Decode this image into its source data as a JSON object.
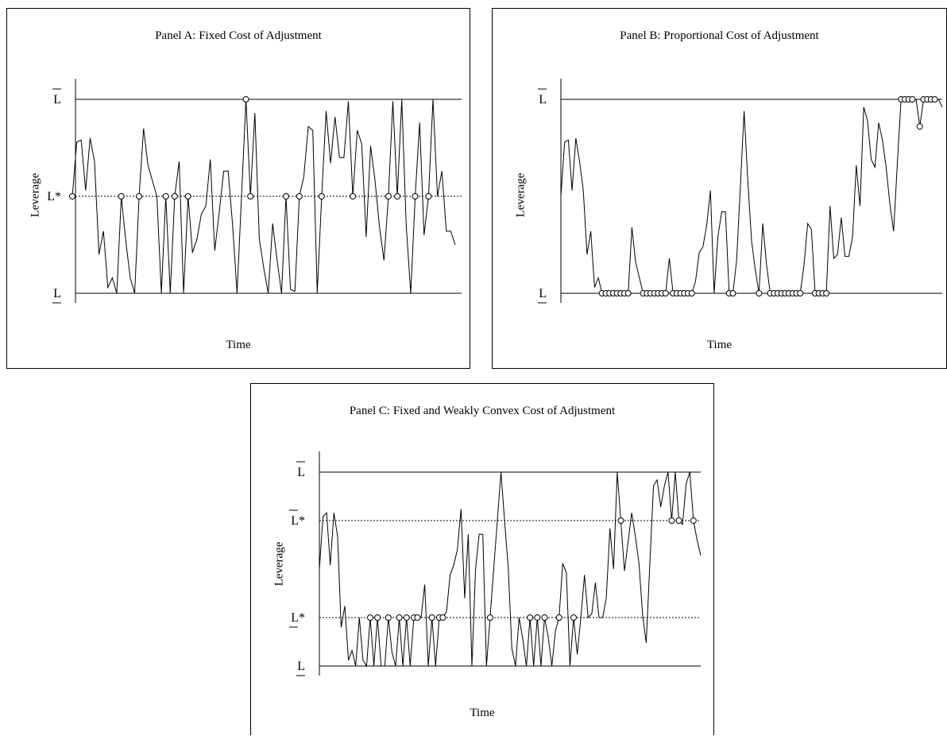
{
  "chart_data": [
    {
      "type": "line",
      "title": "Panel A: Fixed Cost of Adjustment",
      "xlabel": "Time",
      "ylabel": "Leverage",
      "ylim": [
        0,
        1
      ],
      "levels": [
        {
          "label": "L",
          "bar": "over",
          "value": 1.0,
          "style": "solid"
        },
        {
          "label": "L*",
          "bar": "none",
          "value": 0.5,
          "style": "dotted"
        },
        {
          "label": "L",
          "bar": "under",
          "value": 0.0,
          "style": "solid"
        }
      ],
      "series": [
        {
          "values": [
            0.5,
            0.78,
            0.79,
            0.53,
            0.8,
            0.68,
            0.2,
            0.32,
            0.03,
            0.08,
            0.0,
            0.5,
            0.27,
            0.08,
            0.0,
            0.5,
            0.85,
            0.66,
            0.58,
            0.5,
            0.0,
            0.5,
            0.0,
            0.5,
            0.68,
            0.0,
            0.5,
            0.21,
            0.28,
            0.41,
            0.45,
            0.69,
            0.22,
            0.42,
            0.63,
            0.63,
            0.35,
            0.0,
            0.5,
            1.0,
            0.5,
            0.93,
            0.28,
            0.13,
            0.0,
            0.36,
            0.17,
            0.0,
            0.5,
            0.02,
            0.01,
            0.5,
            0.6,
            0.86,
            0.84,
            0.0,
            0.5,
            0.94,
            0.67,
            0.91,
            0.7,
            0.7,
            0.99,
            0.5,
            0.84,
            0.77,
            0.29,
            0.76,
            0.58,
            0.34,
            0.17,
            0.5,
            0.99,
            0.5,
            1.0,
            0.35,
            0.0,
            0.5,
            0.88,
            0.3,
            0.5,
            1.0,
            0.5,
            0.63,
            0.32,
            0.32,
            0.25
          ]
        }
      ],
      "markers": [
        0,
        11,
        15,
        21,
        23,
        26,
        39,
        40,
        48,
        51,
        56,
        63,
        71,
        73,
        77,
        80
      ]
    },
    {
      "type": "line",
      "title": "Panel B: Proportional Cost of Adjustment",
      "xlabel": "Time",
      "ylabel": "Leverage",
      "ylim": [
        0,
        1
      ],
      "levels": [
        {
          "label": "L",
          "bar": "over",
          "value": 1.0,
          "style": "solid"
        },
        {
          "label": "L",
          "bar": "under",
          "value": 0.0,
          "style": "solid"
        }
      ],
      "series": [
        {
          "values": [
            0.5,
            0.78,
            0.79,
            0.53,
            0.8,
            0.68,
            0.53,
            0.2,
            0.32,
            0.03,
            0.08,
            0.0,
            0.0,
            0.0,
            0.0,
            0.0,
            0.0,
            0.0,
            0.0,
            0.34,
            0.16,
            0.08,
            0.0,
            0.0,
            0.0,
            0.0,
            0.0,
            0.0,
            0.0,
            0.18,
            0.0,
            0.0,
            0.0,
            0.0,
            0.0,
            0.0,
            0.06,
            0.21,
            0.24,
            0.35,
            0.53,
            0.0,
            0.29,
            0.42,
            0.42,
            0.0,
            0.0,
            0.17,
            0.55,
            0.94,
            0.58,
            0.27,
            0.12,
            0.0,
            0.36,
            0.15,
            0.0,
            0.0,
            0.0,
            0.0,
            0.0,
            0.0,
            0.0,
            0.0,
            0.0,
            0.14,
            0.36,
            0.33,
            0.0,
            0.0,
            0.0,
            0.0,
            0.45,
            0.18,
            0.2,
            0.39,
            0.19,
            0.19,
            0.29,
            0.66,
            0.45,
            0.96,
            0.89,
            0.69,
            0.65,
            0.88,
            0.79,
            0.65,
            0.46,
            0.32,
            0.67,
            1.0,
            1.0,
            1.0,
            1.0,
            1.0,
            0.86,
            1.0,
            1.0,
            1.0,
            1.0,
            1.0,
            0.96
          ]
        }
      ],
      "markers": [
        11,
        12,
        13,
        14,
        15,
        16,
        17,
        18,
        22,
        23,
        24,
        25,
        26,
        27,
        28,
        30,
        31,
        32,
        33,
        34,
        35,
        45,
        46,
        53,
        56,
        57,
        58,
        59,
        60,
        61,
        62,
        63,
        64,
        68,
        69,
        70,
        71,
        91,
        92,
        93,
        94,
        96,
        97,
        98,
        99,
        100
      ]
    },
    {
      "type": "line",
      "title": "Panel C: Fixed and Weakly Convex Cost of Adjustment",
      "xlabel": "Time",
      "ylabel": "Leverage",
      "ylim": [
        0,
        1
      ],
      "levels": [
        {
          "label": "L",
          "bar": "over",
          "value": 1.0,
          "style": "solid"
        },
        {
          "label": "L*",
          "bar": "over",
          "value": 0.75,
          "style": "dotted"
        },
        {
          "label": "L*",
          "bar": "under",
          "value": 0.25,
          "style": "dotted"
        },
        {
          "label": "L",
          "bar": "under",
          "value": 0.0,
          "style": "solid"
        }
      ],
      "series": [
        {
          "values": [
            0.5,
            0.77,
            0.79,
            0.52,
            0.79,
            0.67,
            0.2,
            0.31,
            0.03,
            0.08,
            0.0,
            0.25,
            0.03,
            0.0,
            0.25,
            0.0,
            0.25,
            0.0,
            0.0,
            0.25,
            0.07,
            0.0,
            0.25,
            0.0,
            0.25,
            0.0,
            0.25,
            0.25,
            0.25,
            0.42,
            0.0,
            0.25,
            0.0,
            0.25,
            0.25,
            0.28,
            0.47,
            0.52,
            0.6,
            0.81,
            0.35,
            0.68,
            0.0,
            0.5,
            0.68,
            0.68,
            0.0,
            0.25,
            0.5,
            0.75,
            1.0,
            0.75,
            0.51,
            0.09,
            0.0,
            0.25,
            0.14,
            0.0,
            0.25,
            0.0,
            0.25,
            0.0,
            0.25,
            0.15,
            0.0,
            0.18,
            0.25,
            0.53,
            0.48,
            0.0,
            0.25,
            0.06,
            0.25,
            0.47,
            0.25,
            0.27,
            0.43,
            0.25,
            0.25,
            0.35,
            0.71,
            0.5,
            1.0,
            0.75,
            0.49,
            0.64,
            0.79,
            0.67,
            0.53,
            0.26,
            0.12,
            0.53,
            0.93,
            0.96,
            0.82,
            0.93,
            1.0,
            0.75,
            1.0,
            0.75,
            0.73,
            0.94,
            1.0,
            0.75,
            0.65,
            0.57
          ]
        }
      ],
      "markers": [
        14,
        16,
        19,
        22,
        24,
        26,
        27,
        31,
        33,
        34,
        47,
        58,
        60,
        62,
        66,
        70,
        83,
        97,
        99,
        103
      ]
    }
  ]
}
